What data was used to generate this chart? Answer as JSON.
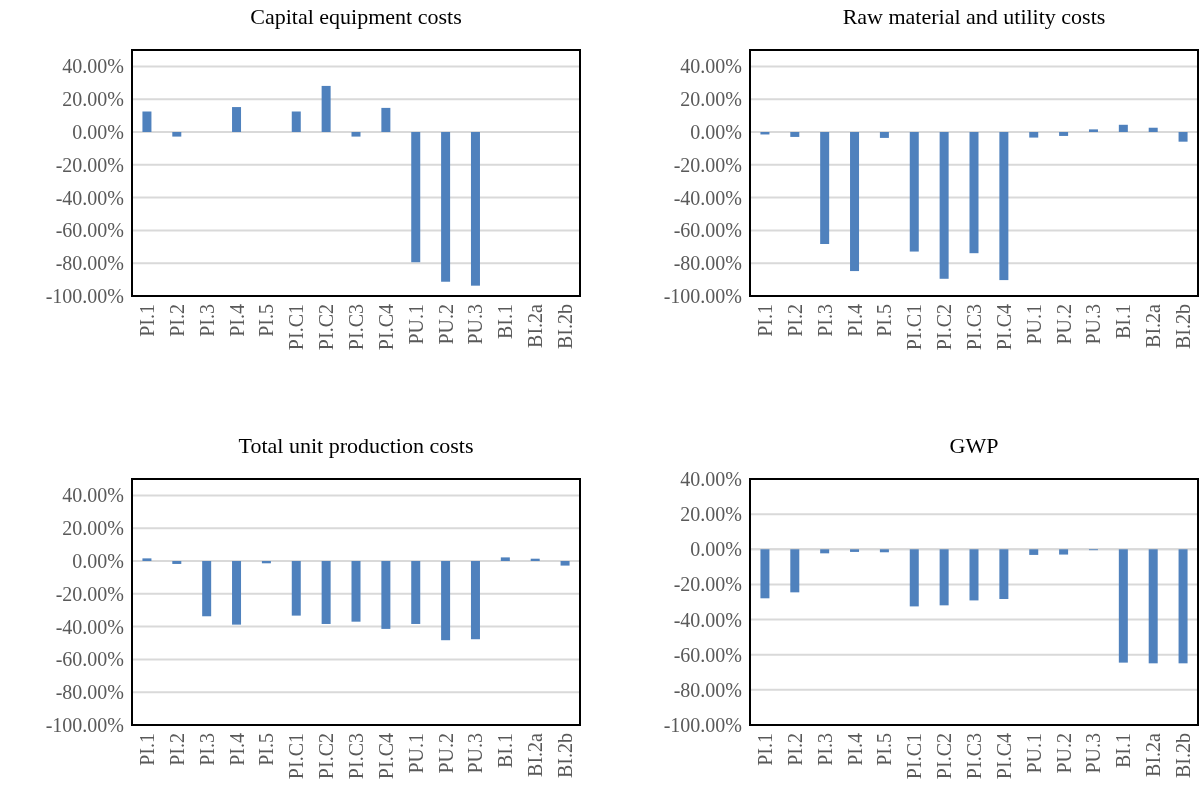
{
  "chart_data": [
    {
      "type": "bar",
      "title": "Capital equipment costs",
      "categories": [
        "PI.1",
        "PI.2",
        "PI.3",
        "PI.4",
        "PI.5",
        "PI.C1",
        "PI.C2",
        "PI.C3",
        "PI.C4",
        "PU.1",
        "PU.2",
        "PU.3",
        "BI.1",
        "BI.2a",
        "BI.2b"
      ],
      "values": [
        12.5,
        -2.8,
        0,
        15.2,
        0,
        12.5,
        28.1,
        -2.8,
        14.7,
        -79.4,
        -91.3,
        -93.7,
        0,
        0,
        0
      ],
      "color": "#4f81bd",
      "ylim": [
        -100,
        50
      ],
      "yticks": [
        {
          "value": -100,
          "label": "-100.00%"
        },
        {
          "value": -80,
          "label": "-80.00%"
        },
        {
          "value": -60,
          "label": "-60.00%"
        },
        {
          "value": -40,
          "label": "-40.00%"
        },
        {
          "value": -20,
          "label": "-20.00%"
        },
        {
          "value": 0,
          "label": "0.00%"
        },
        {
          "value": 20,
          "label": "20.00%"
        },
        {
          "value": 40,
          "label": "40.00%"
        }
      ],
      "grid": "y"
    },
    {
      "type": "bar",
      "title": "Raw material and utility costs",
      "categories": [
        "PI.1",
        "PI.2",
        "PI.3",
        "PI.4",
        "PI.5",
        "PI.C1",
        "PI.C2",
        "PI.C3",
        "PI.C4",
        "PU.1",
        "PU.2",
        "PU.3",
        "BI.1",
        "BI.2a",
        "BI.2b"
      ],
      "values": [
        -1.5,
        -3.0,
        -68.3,
        -84.8,
        -3.6,
        -72.9,
        -89.5,
        -73.9,
        -90.3,
        -3.4,
        -2.4,
        1.6,
        4.4,
        2.6,
        -5.9
      ],
      "color": "#4f81bd",
      "ylim": [
        -100,
        50
      ],
      "yticks": [
        {
          "value": -100,
          "label": "-100.00%"
        },
        {
          "value": -80,
          "label": "-80.00%"
        },
        {
          "value": -60,
          "label": "-60.00%"
        },
        {
          "value": -40,
          "label": "-40.00%"
        },
        {
          "value": -20,
          "label": "-20.00%"
        },
        {
          "value": 0,
          "label": "0.00%"
        },
        {
          "value": 20,
          "label": "20.00%"
        },
        {
          "value": 40,
          "label": "40.00%"
        }
      ],
      "grid": "y"
    },
    {
      "type": "bar",
      "title": "Total unit production costs",
      "categories": [
        "PI.1",
        "PI.2",
        "PI.3",
        "PI.4",
        "PI.5",
        "PI.C1",
        "PI.C2",
        "PI.C3",
        "PI.C4",
        "PU.1",
        "PU.2",
        "PU.3",
        "BI.1",
        "BI.2a",
        "BI.2b"
      ],
      "values": [
        1.6,
        -1.8,
        -33.7,
        -38.8,
        -1.4,
        -33.3,
        -38.4,
        -37.0,
        -41.4,
        -38.4,
        -48.3,
        -47.7,
        2.2,
        1.4,
        -2.8
      ],
      "color": "#4f81bd",
      "ylim": [
        -100,
        50
      ],
      "yticks": [
        {
          "value": -100,
          "label": "-100.00%"
        },
        {
          "value": -80,
          "label": "-80.00%"
        },
        {
          "value": -60,
          "label": "-60.00%"
        },
        {
          "value": -40,
          "label": "-40.00%"
        },
        {
          "value": -20,
          "label": "-20.00%"
        },
        {
          "value": 0,
          "label": "0.00%"
        },
        {
          "value": 20,
          "label": "20.00%"
        },
        {
          "value": 40,
          "label": "40.00%"
        }
      ],
      "grid": "y"
    },
    {
      "type": "bar",
      "title": "GWP",
      "categories": [
        "PI.1",
        "PI.2",
        "PI.3",
        "PI.4",
        "PI.5",
        "PI.C1",
        "PI.C2",
        "PI.C3",
        "PI.C4",
        "PU.1",
        "PU.2",
        "PU.3",
        "BI.1",
        "BI.2a",
        "BI.2b"
      ],
      "values": [
        -27.9,
        -24.5,
        -2.3,
        -1.5,
        -1.7,
        -32.5,
        -31.9,
        -29.1,
        -28.3,
        -3.2,
        -3.0,
        -0.5,
        -64.5,
        -64.9,
        -64.9
      ],
      "color": "#4f81bd",
      "ylim": [
        -100,
        40
      ],
      "yticks": [
        {
          "value": -100,
          "label": "-100.00%"
        },
        {
          "value": -80,
          "label": "-80.00%"
        },
        {
          "value": -60,
          "label": "-60.00%"
        },
        {
          "value": -40,
          "label": "-40.00%"
        },
        {
          "value": -20,
          "label": "-20.00%"
        },
        {
          "value": 0,
          "label": "0.00%"
        },
        {
          "value": 20,
          "label": "20.00%"
        },
        {
          "value": 40,
          "label": "40.00%"
        }
      ],
      "grid": "y"
    }
  ]
}
